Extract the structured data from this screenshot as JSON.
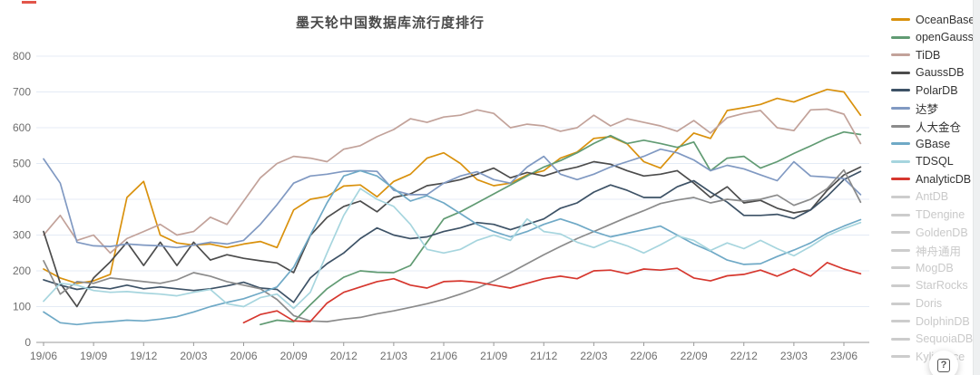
{
  "chart_data": {
    "type": "line",
    "title": "墨天轮中国数据库流行度排行",
    "xlabel": "",
    "ylabel": "",
    "ylim": [
      0,
      800
    ],
    "y_ticks": [
      0,
      100,
      200,
      300,
      400,
      500,
      600,
      700,
      800
    ],
    "x_tick_labels": [
      "19/06",
      "19/09",
      "19/12",
      "20/03",
      "20/06",
      "20/09",
      "20/12",
      "21/03",
      "21/06",
      "21/09",
      "21/12",
      "22/03",
      "22/06",
      "22/09",
      "22/12",
      "23/03",
      "23/06"
    ],
    "x_tick_every": 3,
    "points_per_series": 50,
    "grid": true,
    "legend_position": "right",
    "series": [
      {
        "name": "OceanBase",
        "color": "#D9910D",
        "values": [
          205,
          180,
          165,
          172,
          190,
          405,
          450,
          300,
          278,
          272,
          275,
          265,
          275,
          282,
          265,
          370,
          400,
          408,
          437,
          440,
          407,
          450,
          470,
          515,
          530,
          500,
          455,
          438,
          445,
          468,
          480,
          515,
          532,
          570,
          575,
          555,
          505,
          487,
          540,
          585,
          570,
          648,
          656,
          665,
          682,
          672,
          690,
          707,
          700,
          635
        ]
      },
      {
        "name": "openGauss",
        "color": "#619B73",
        "values": [
          null,
          null,
          null,
          null,
          null,
          null,
          null,
          null,
          null,
          null,
          null,
          null,
          null,
          50,
          62,
          58,
          105,
          150,
          182,
          200,
          196,
          195,
          215,
          280,
          345,
          365,
          390,
          415,
          440,
          465,
          490,
          508,
          530,
          556,
          578,
          556,
          565,
          556,
          545,
          560,
          480,
          515,
          520,
          487,
          505,
          528,
          549,
          571,
          588,
          581
        ]
      },
      {
        "name": "TiDB",
        "color": "#C2A29A",
        "values": [
          300,
          355,
          285,
          300,
          250,
          290,
          310,
          330,
          300,
          310,
          350,
          330,
          395,
          460,
          500,
          520,
          515,
          505,
          540,
          550,
          575,
          595,
          625,
          615,
          630,
          635,
          650,
          640,
          600,
          610,
          605,
          590,
          600,
          635,
          605,
          625,
          615,
          605,
          590,
          620,
          585,
          628,
          640,
          648,
          600,
          592,
          650,
          652,
          638,
          556
        ]
      },
      {
        "name": "GaussDB",
        "color": "#4C4C4C",
        "values": [
          310,
          165,
          100,
          180,
          225,
          280,
          215,
          280,
          215,
          280,
          230,
          245,
          235,
          228,
          222,
          195,
          299,
          349,
          380,
          395,
          365,
          405,
          415,
          438,
          445,
          455,
          470,
          487,
          460,
          475,
          465,
          480,
          490,
          505,
          498,
          480,
          465,
          470,
          480,
          445,
          405,
          435,
          390,
          397,
          375,
          362,
          370,
          425,
          468,
          490
        ]
      },
      {
        "name": "PolarDB",
        "color": "#3D5266",
        "values": [
          175,
          160,
          148,
          155,
          150,
          160,
          150,
          155,
          150,
          145,
          150,
          158,
          168,
          152,
          148,
          112,
          180,
          220,
          250,
          290,
          320,
          300,
          290,
          295,
          310,
          320,
          335,
          330,
          315,
          330,
          345,
          375,
          390,
          420,
          440,
          425,
          405,
          405,
          435,
          452,
          420,
          392,
          355,
          355,
          358,
          346,
          370,
          408,
          455,
          478
        ]
      },
      {
        "name": "达梦",
        "color": "#8099C2",
        "values": [
          513,
          445,
          280,
          270,
          268,
          275,
          272,
          270,
          265,
          272,
          280,
          275,
          285,
          330,
          385,
          445,
          465,
          470,
          478,
          480,
          478,
          425,
          413,
          413,
          445,
          465,
          477,
          455,
          445,
          490,
          520,
          470,
          455,
          470,
          490,
          505,
          520,
          540,
          530,
          510,
          480,
          495,
          485,
          468,
          452,
          505,
          465,
          462,
          458,
          413
        ]
      },
      {
        "name": "人大金仓",
        "color": "#8B8B8B",
        "values": [
          228,
          135,
          170,
          165,
          180,
          175,
          170,
          165,
          175,
          195,
          185,
          170,
          160,
          150,
          120,
          75,
          60,
          58,
          65,
          70,
          80,
          88,
          98,
          108,
          120,
          135,
          152,
          172,
          195,
          220,
          245,
          268,
          290,
          310,
          330,
          350,
          368,
          388,
          398,
          405,
          390,
          400,
          395,
          400,
          412,
          383,
          400,
          430,
          482,
          392
        ]
      },
      {
        "name": "GBase",
        "color": "#6FA9C6",
        "values": [
          85,
          55,
          50,
          55,
          58,
          62,
          60,
          65,
          72,
          85,
          100,
          112,
          122,
          138,
          155,
          210,
          300,
          390,
          465,
          480,
          465,
          430,
          395,
          410,
          390,
          360,
          330,
          310,
          295,
          310,
          330,
          345,
          330,
          310,
          295,
          305,
          315,
          325,
          300,
          275,
          255,
          230,
          218,
          220,
          240,
          258,
          278,
          305,
          325,
          343
        ]
      },
      {
        "name": "TDSQL",
        "color": "#A6D5DE",
        "values": [
          115,
          165,
          160,
          145,
          140,
          142,
          138,
          135,
          130,
          140,
          148,
          108,
          100,
          125,
          135,
          95,
          140,
          250,
          355,
          430,
          400,
          380,
          330,
          260,
          250,
          260,
          285,
          300,
          285,
          345,
          310,
          303,
          280,
          265,
          285,
          270,
          250,
          273,
          298,
          285,
          257,
          278,
          262,
          285,
          262,
          242,
          268,
          298,
          318,
          335
        ]
      },
      {
        "name": "AnalyticDB",
        "color": "#D6372E",
        "values": [
          null,
          null,
          null,
          null,
          null,
          null,
          null,
          null,
          null,
          null,
          null,
          null,
          55,
          78,
          88,
          60,
          58,
          110,
          140,
          155,
          170,
          178,
          160,
          152,
          170,
          172,
          168,
          160,
          152,
          165,
          178,
          185,
          178,
          200,
          202,
          192,
          205,
          202,
          207,
          180,
          172,
          186,
          190,
          202,
          185,
          205,
          185,
          223,
          205,
          192
        ]
      }
    ]
  },
  "legend": {
    "inactive_color": "#cccccc",
    "items": [
      {
        "label": "OceanBase",
        "color": "#D9910D",
        "active": true
      },
      {
        "label": "openGauss",
        "color": "#619B73",
        "active": true
      },
      {
        "label": "TiDB",
        "color": "#C2A29A",
        "active": true
      },
      {
        "label": "GaussDB",
        "color": "#4C4C4C",
        "active": true
      },
      {
        "label": "PolarDB",
        "color": "#3D5266",
        "active": true
      },
      {
        "label": "达梦",
        "color": "#8099C2",
        "active": true
      },
      {
        "label": "人大金仓",
        "color": "#8B8B8B",
        "active": true
      },
      {
        "label": "GBase",
        "color": "#6FA9C6",
        "active": true
      },
      {
        "label": "TDSQL",
        "color": "#A6D5DE",
        "active": true
      },
      {
        "label": "AnalyticDB",
        "color": "#D6372E",
        "active": true
      },
      {
        "label": "AntDB",
        "color": "#cccccc",
        "active": false
      },
      {
        "label": "TDengine",
        "color": "#cccccc",
        "active": false
      },
      {
        "label": "GoldenDB",
        "color": "#cccccc",
        "active": false
      },
      {
        "label": "神舟通用",
        "color": "#cccccc",
        "active": false
      },
      {
        "label": "MogDB",
        "color": "#cccccc",
        "active": false
      },
      {
        "label": "StarRocks",
        "color": "#cccccc",
        "active": false
      },
      {
        "label": "Doris",
        "color": "#cccccc",
        "active": false
      },
      {
        "label": "DolphinDB",
        "color": "#cccccc",
        "active": false
      },
      {
        "label": "SequoiaDB",
        "color": "#cccccc",
        "active": false
      },
      {
        "label": "Kyligence",
        "color": "#cccccc",
        "active": false
      }
    ]
  },
  "widgets": {
    "help_icon_label": "?"
  },
  "style_colors": {
    "grid_line": "#e4ebf5",
    "axis_line": "#999999",
    "tick_label": "#6e6e6e",
    "title_text": "#4a4a4a"
  }
}
